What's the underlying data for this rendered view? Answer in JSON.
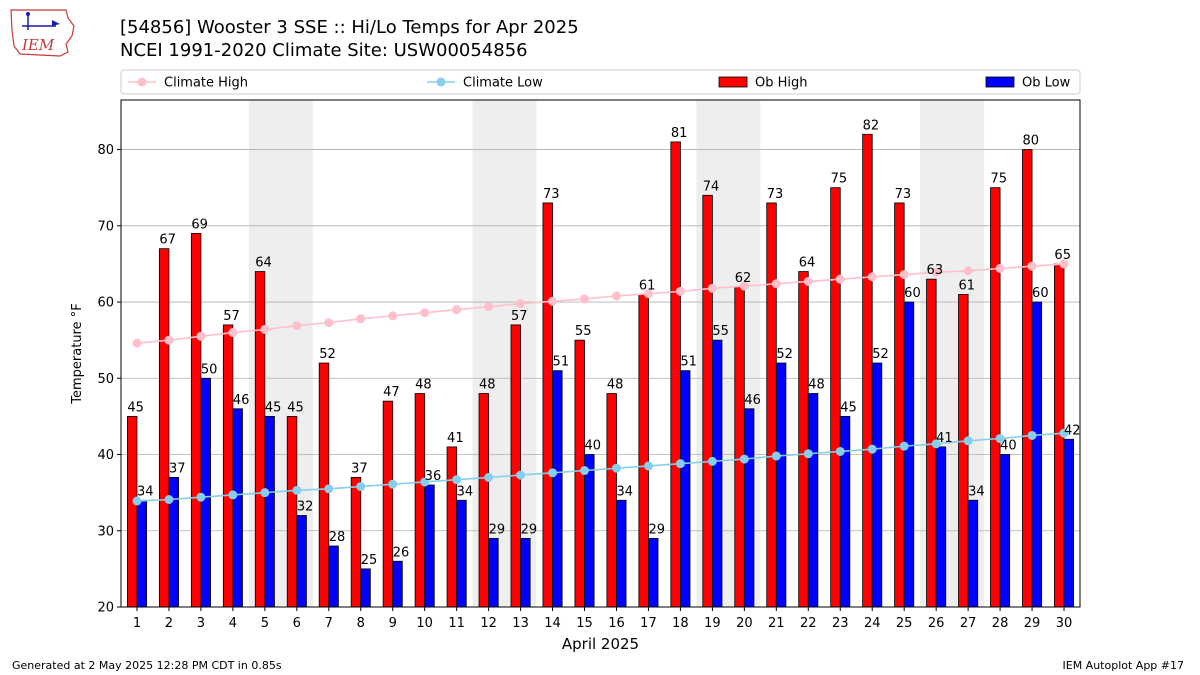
{
  "header": {
    "title_line1": "[54856] Wooster 3 SSE :: Hi/Lo Temps for Apr 2025",
    "title_line2": "NCEI 1991-2020 Climate Site: USW00054856",
    "logo_text": "IEM"
  },
  "footer": {
    "generated": "Generated at 2 May 2025 12:28 PM CDT in 0.85s",
    "app": "IEM Autoplot App #17"
  },
  "colors": {
    "ob_high": "#ff0000",
    "ob_low": "#0000ff",
    "climate_high": "#ffc0cb",
    "climate_low": "#87ceeb",
    "weekend_shade": "#eeeeee"
  },
  "chart_data": {
    "type": "bar",
    "xlabel": "April 2025",
    "ylabel": "Temperature °F",
    "ylim": [
      20,
      86.5
    ],
    "xlim": [
      0.5,
      30.5
    ],
    "yticks": [
      20,
      30,
      40,
      50,
      60,
      70,
      80
    ],
    "grid": "y",
    "legend_position": "top",
    "legend": [
      "Climate High",
      "Climate Low",
      "Ob High",
      "Ob Low"
    ],
    "x": [
      1,
      2,
      3,
      4,
      5,
      6,
      7,
      8,
      9,
      10,
      11,
      12,
      13,
      14,
      15,
      16,
      17,
      18,
      19,
      20,
      21,
      22,
      23,
      24,
      25,
      26,
      27,
      28,
      29,
      30
    ],
    "shaded_spans": [
      [
        5,
        6
      ],
      [
        12,
        13
      ],
      [
        19,
        20
      ],
      [
        26,
        27
      ]
    ],
    "series": [
      {
        "name": "Ob High",
        "kind": "bar",
        "values": [
          45,
          67,
          69,
          57,
          64,
          45,
          52,
          37,
          47,
          48,
          41,
          48,
          57,
          73,
          55,
          48,
          61,
          81,
          74,
          62,
          73,
          64,
          75,
          82,
          73,
          63,
          61,
          75,
          80,
          65
        ]
      },
      {
        "name": "Ob Low",
        "kind": "bar",
        "values": [
          34,
          37,
          50,
          46,
          45,
          32,
          28,
          25,
          26,
          36,
          34,
          29,
          29,
          51,
          40,
          34,
          29,
          51,
          55,
          46,
          52,
          48,
          45,
          52,
          60,
          41,
          34,
          40,
          60,
          42
        ]
      },
      {
        "name": "Climate High",
        "kind": "line",
        "values": [
          54.6,
          55.0,
          55.5,
          56.0,
          56.4,
          56.9,
          57.3,
          57.8,
          58.2,
          58.6,
          59.0,
          59.4,
          59.8,
          60.1,
          60.4,
          60.8,
          61.1,
          61.4,
          61.8,
          62.1,
          62.4,
          62.7,
          63.0,
          63.3,
          63.6,
          63.9,
          64.1,
          64.4,
          64.7,
          65.0
        ]
      },
      {
        "name": "Climate Low",
        "kind": "line",
        "values": [
          33.9,
          34.1,
          34.4,
          34.7,
          35.0,
          35.3,
          35.5,
          35.8,
          36.1,
          36.4,
          36.7,
          37.0,
          37.3,
          37.6,
          37.9,
          38.2,
          38.5,
          38.8,
          39.1,
          39.4,
          39.8,
          40.1,
          40.4,
          40.7,
          41.1,
          41.4,
          41.8,
          42.1,
          42.5,
          42.8
        ]
      }
    ]
  }
}
